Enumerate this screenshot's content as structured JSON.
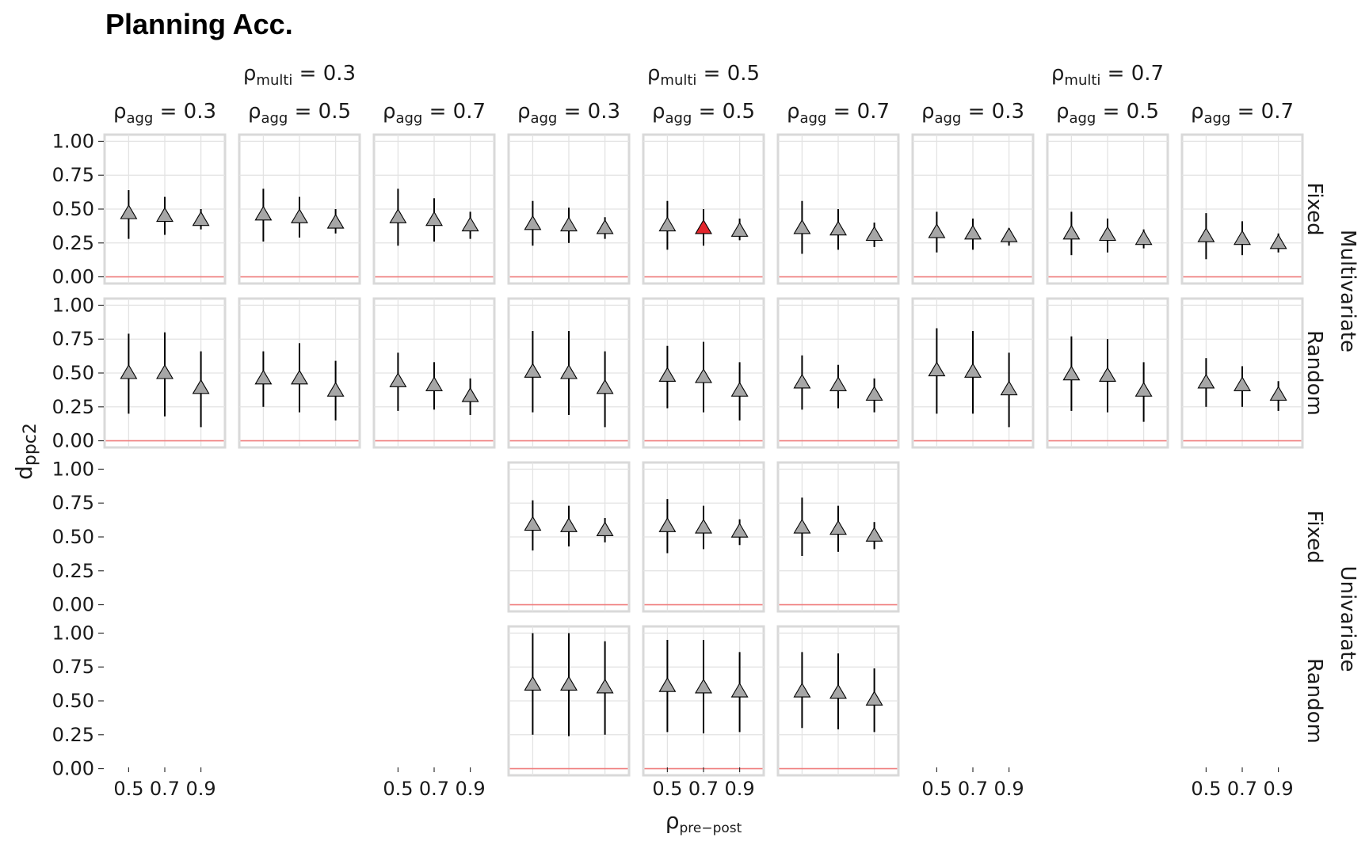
{
  "chart_data": {
    "type": "scatter",
    "title": "Planning Acc.",
    "ylabel": "d",
    "ylabel_sub": "ppc2",
    "xlabel": "ρ",
    "xlabel_sub": "pre−post",
    "x": [
      0.5,
      0.7,
      0.9
    ],
    "x_tick_labels": [
      "0.5",
      "0.7",
      "0.9"
    ],
    "y_ticks": [
      "1.00",
      "0.75",
      "0.50",
      "0.25",
      "0.00"
    ],
    "ylim": [
      0,
      1
    ],
    "reference_line": 0,
    "reference_line_color": "#f08080",
    "point_color": "#a6a6a6",
    "highlight_color": "#e3262c",
    "legend": "none",
    "grid": true,
    "rho_multi_groups": [
      {
        "label": "ρ",
        "sub": "multi",
        "value": "= 0.3"
      },
      {
        "label": "ρ",
        "sub": "multi",
        "value": "= 0.5"
      },
      {
        "label": "ρ",
        "sub": "multi",
        "value": "= 0.7"
      }
    ],
    "rho_agg_columns": [
      {
        "label": "ρ",
        "sub": "agg",
        "value": "= 0.3"
      },
      {
        "label": "ρ",
        "sub": "agg",
        "value": "= 0.5"
      },
      {
        "label": "ρ",
        "sub": "agg",
        "value": "= 0.7"
      },
      {
        "label": "ρ",
        "sub": "agg",
        "value": "= 0.3"
      },
      {
        "label": "ρ",
        "sub": "agg",
        "value": "= 0.5"
      },
      {
        "label": "ρ",
        "sub": "agg",
        "value": "= 0.7"
      },
      {
        "label": "ρ",
        "sub": "agg",
        "value": "= 0.3"
      },
      {
        "label": "ρ",
        "sub": "agg",
        "value": "= 0.5"
      },
      {
        "label": "ρ",
        "sub": "agg",
        "value": "= 0.7"
      }
    ],
    "row_labels": [
      "Fixed",
      "Random",
      "Fixed",
      "Random"
    ],
    "row_group_labels": [
      "Multivariate",
      "Univariate"
    ],
    "highlight": {
      "row": 0,
      "col": 4,
      "point": 1
    },
    "panels": [
      {
        "row": 0,
        "col": 0,
        "y": [
          0.47,
          0.45,
          0.42
        ],
        "lo": [
          0.28,
          0.31,
          0.35
        ],
        "hi": [
          0.64,
          0.59,
          0.5
        ]
      },
      {
        "row": 0,
        "col": 1,
        "y": [
          0.46,
          0.44,
          0.4
        ],
        "lo": [
          0.26,
          0.29,
          0.32
        ],
        "hi": [
          0.65,
          0.59,
          0.5
        ]
      },
      {
        "row": 0,
        "col": 2,
        "y": [
          0.44,
          0.42,
          0.38
        ],
        "lo": [
          0.23,
          0.26,
          0.28
        ],
        "hi": [
          0.65,
          0.58,
          0.48
        ]
      },
      {
        "row": 0,
        "col": 3,
        "y": [
          0.39,
          0.38,
          0.36
        ],
        "lo": [
          0.23,
          0.25,
          0.28
        ],
        "hi": [
          0.56,
          0.51,
          0.44
        ]
      },
      {
        "row": 0,
        "col": 4,
        "y": [
          0.38,
          0.36,
          0.34
        ],
        "lo": [
          0.2,
          0.23,
          0.27
        ],
        "hi": [
          0.56,
          0.5,
          0.43
        ]
      },
      {
        "row": 0,
        "col": 5,
        "y": [
          0.36,
          0.35,
          0.31
        ],
        "lo": [
          0.17,
          0.2,
          0.22
        ],
        "hi": [
          0.56,
          0.5,
          0.4
        ]
      },
      {
        "row": 0,
        "col": 6,
        "y": [
          0.33,
          0.32,
          0.3
        ],
        "lo": [
          0.18,
          0.2,
          0.23
        ],
        "hi": [
          0.48,
          0.43,
          0.36
        ]
      },
      {
        "row": 0,
        "col": 7,
        "y": [
          0.32,
          0.31,
          0.28
        ],
        "lo": [
          0.16,
          0.18,
          0.21
        ],
        "hi": [
          0.48,
          0.43,
          0.35
        ]
      },
      {
        "row": 0,
        "col": 8,
        "y": [
          0.3,
          0.28,
          0.25
        ],
        "lo": [
          0.13,
          0.16,
          0.18
        ],
        "hi": [
          0.47,
          0.41,
          0.32
        ]
      },
      {
        "row": 1,
        "col": 0,
        "y": [
          0.5,
          0.5,
          0.39
        ],
        "lo": [
          0.2,
          0.18,
          0.1
        ],
        "hi": [
          0.79,
          0.8,
          0.66
        ]
      },
      {
        "row": 1,
        "col": 1,
        "y": [
          0.46,
          0.46,
          0.37
        ],
        "lo": [
          0.25,
          0.21,
          0.15
        ],
        "hi": [
          0.66,
          0.72,
          0.59
        ]
      },
      {
        "row": 1,
        "col": 2,
        "y": [
          0.44,
          0.41,
          0.33
        ],
        "lo": [
          0.22,
          0.23,
          0.19
        ],
        "hi": [
          0.65,
          0.58,
          0.46
        ]
      },
      {
        "row": 1,
        "col": 3,
        "y": [
          0.51,
          0.5,
          0.39
        ],
        "lo": [
          0.21,
          0.19,
          0.1
        ],
        "hi": [
          0.81,
          0.81,
          0.66
        ]
      },
      {
        "row": 1,
        "col": 4,
        "y": [
          0.48,
          0.47,
          0.37
        ],
        "lo": [
          0.24,
          0.21,
          0.15
        ],
        "hi": [
          0.7,
          0.73,
          0.58
        ]
      },
      {
        "row": 1,
        "col": 5,
        "y": [
          0.43,
          0.41,
          0.34
        ],
        "lo": [
          0.23,
          0.24,
          0.21
        ],
        "hi": [
          0.63,
          0.56,
          0.46
        ]
      },
      {
        "row": 1,
        "col": 6,
        "y": [
          0.52,
          0.51,
          0.38
        ],
        "lo": [
          0.2,
          0.2,
          0.1
        ],
        "hi": [
          0.83,
          0.81,
          0.65
        ]
      },
      {
        "row": 1,
        "col": 7,
        "y": [
          0.49,
          0.48,
          0.37
        ],
        "lo": [
          0.22,
          0.21,
          0.14
        ],
        "hi": [
          0.77,
          0.75,
          0.58
        ]
      },
      {
        "row": 1,
        "col": 8,
        "y": [
          0.43,
          0.41,
          0.34
        ],
        "lo": [
          0.25,
          0.25,
          0.22
        ],
        "hi": [
          0.61,
          0.55,
          0.44
        ]
      },
      {
        "row": 2,
        "col": 3,
        "y": [
          0.59,
          0.58,
          0.55
        ],
        "lo": [
          0.4,
          0.43,
          0.46
        ],
        "hi": [
          0.77,
          0.73,
          0.64
        ]
      },
      {
        "row": 2,
        "col": 4,
        "y": [
          0.58,
          0.57,
          0.54
        ],
        "lo": [
          0.38,
          0.41,
          0.44
        ],
        "hi": [
          0.78,
          0.73,
          0.63
        ]
      },
      {
        "row": 2,
        "col": 5,
        "y": [
          0.57,
          0.56,
          0.51
        ],
        "lo": [
          0.36,
          0.39,
          0.41
        ],
        "hi": [
          0.79,
          0.73,
          0.61
        ]
      },
      {
        "row": 3,
        "col": 3,
        "y": [
          0.62,
          0.62,
          0.6
        ],
        "lo": [
          0.25,
          0.24,
          0.25
        ],
        "hi": [
          1.0,
          1.0,
          0.94
        ]
      },
      {
        "row": 3,
        "col": 4,
        "y": [
          0.61,
          0.6,
          0.57
        ],
        "lo": [
          0.27,
          0.26,
          0.27
        ],
        "hi": [
          0.95,
          0.95,
          0.86
        ]
      },
      {
        "row": 3,
        "col": 5,
        "y": [
          0.57,
          0.56,
          0.51
        ],
        "lo": [
          0.3,
          0.29,
          0.27
        ],
        "hi": [
          0.86,
          0.85,
          0.74
        ]
      }
    ]
  }
}
